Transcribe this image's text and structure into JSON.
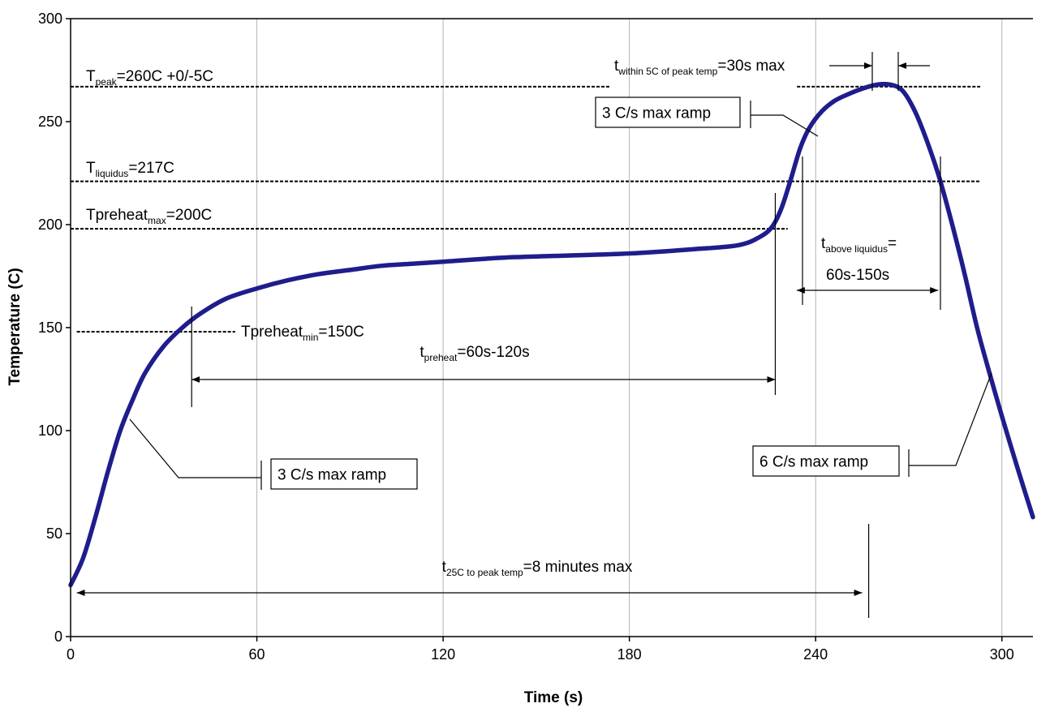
{
  "chart_data": {
    "type": "line",
    "xlabel": "Time (s)",
    "ylabel": "Temperature (C)",
    "xlim": [
      0,
      310
    ],
    "ylim": [
      0,
      300
    ],
    "x_ticks": [
      0,
      60,
      120,
      180,
      240,
      300
    ],
    "y_ticks": [
      0,
      50,
      100,
      150,
      200,
      250,
      300
    ],
    "grid": "vertical",
    "series": [
      {
        "color": "#1f1d8c",
        "x": [
          0,
          4,
          8,
          12,
          16,
          20,
          24,
          30,
          36,
          42,
          50,
          60,
          70,
          80,
          90,
          100,
          110,
          120,
          140,
          160,
          180,
          200,
          215,
          222,
          226,
          229,
          232,
          235,
          238,
          242,
          246,
          250,
          255,
          260,
          264,
          268,
          272,
          276,
          280,
          284,
          288,
          292,
          296,
          300,
          305,
          310
        ],
        "y": [
          25,
          38,
          58,
          80,
          100,
          115,
          128,
          141,
          150,
          157,
          164,
          169,
          173,
          176,
          178,
          180,
          181,
          182,
          184,
          185,
          186,
          188,
          190,
          194,
          199,
          208,
          222,
          237,
          247,
          255,
          260,
          263,
          266,
          268,
          268,
          265,
          255,
          240,
          222,
          200,
          176,
          150,
          128,
          107,
          82,
          58
        ]
      }
    ],
    "reference_lines": [
      {
        "id": "peak",
        "y": 267,
        "segments": [
          [
            0,
            174
          ],
          [
            234,
            293
          ]
        ],
        "label": {
          "main": "T",
          "sub": "peak",
          "rest": "=260C +0/-5C"
        }
      },
      {
        "id": "liquidus",
        "y": 221,
        "segments": [
          [
            0,
            293
          ]
        ],
        "label": {
          "main": "T",
          "sub": "liquidus",
          "rest": "=217C"
        }
      },
      {
        "id": "preheat-max",
        "y": 198,
        "segments": [
          [
            0,
            231
          ]
        ],
        "label": {
          "main": "Tpreheat",
          "sub": "max",
          "rest": "=200C"
        }
      },
      {
        "id": "preheat-min",
        "y": 148,
        "segments": [
          [
            2,
            53
          ]
        ],
        "label": {
          "main": "Tpreheat",
          "sub": "min",
          "rest": "=150C"
        }
      }
    ],
    "annotations": {
      "t_within": {
        "main": "t",
        "sub": "within 5C of peak temp",
        "rest": "=30s max",
        "from": 258,
        "to": 266
      },
      "t_above": {
        "main": "t",
        "sub": "above liquidus",
        "rest": "=",
        "line2": "60s-150s",
        "from": 236,
        "to": 280
      },
      "t_preheat": {
        "main": "t",
        "sub": "preheat",
        "rest": "=60s-120s",
        "from": 39,
        "to": 227
      },
      "t_25c": {
        "main": "t",
        "sub": "25C to peak temp",
        "rest": "=8 minutes max",
        "from": 2,
        "to": 255
      },
      "ramp_up_1": {
        "text": "3 C/s max ramp"
      },
      "ramp_up_2": {
        "text": "3 C/s max ramp"
      },
      "ramp_down": {
        "text": "6 C/s max ramp"
      }
    }
  }
}
